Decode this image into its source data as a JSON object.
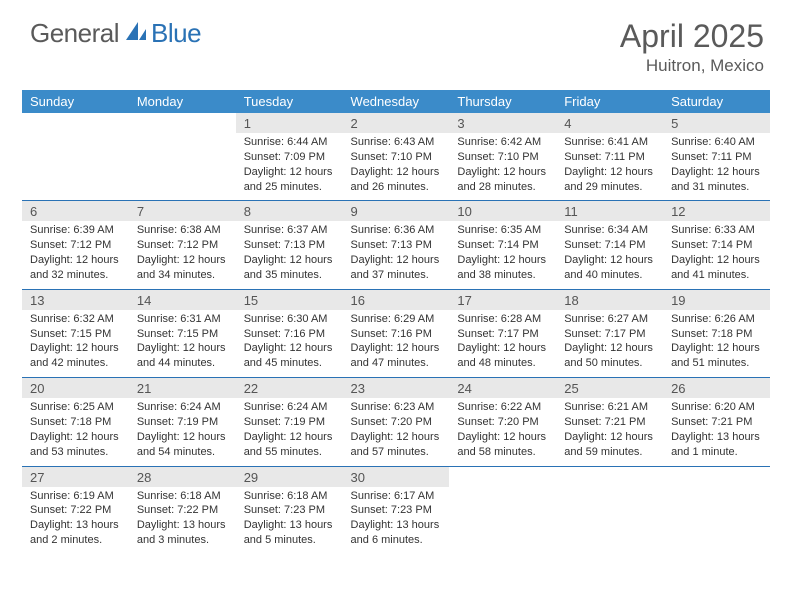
{
  "brand": {
    "part1": "General",
    "part2": "Blue"
  },
  "title": "April 2025",
  "location": "Huitron, Mexico",
  "colors": {
    "header_bg": "#3b8bc9",
    "accent": "#2a72b5",
    "daynum_bg": "#e8e8e8",
    "text": "#333333",
    "muted": "#5a5a5a"
  },
  "weekdays": [
    "Sunday",
    "Monday",
    "Tuesday",
    "Wednesday",
    "Thursday",
    "Friday",
    "Saturday"
  ],
  "weeks": [
    [
      null,
      null,
      {
        "n": "1",
        "sr": "Sunrise: 6:44 AM",
        "ss": "Sunset: 7:09 PM",
        "dl": "Daylight: 12 hours and 25 minutes."
      },
      {
        "n": "2",
        "sr": "Sunrise: 6:43 AM",
        "ss": "Sunset: 7:10 PM",
        "dl": "Daylight: 12 hours and 26 minutes."
      },
      {
        "n": "3",
        "sr": "Sunrise: 6:42 AM",
        "ss": "Sunset: 7:10 PM",
        "dl": "Daylight: 12 hours and 28 minutes."
      },
      {
        "n": "4",
        "sr": "Sunrise: 6:41 AM",
        "ss": "Sunset: 7:11 PM",
        "dl": "Daylight: 12 hours and 29 minutes."
      },
      {
        "n": "5",
        "sr": "Sunrise: 6:40 AM",
        "ss": "Sunset: 7:11 PM",
        "dl": "Daylight: 12 hours and 31 minutes."
      }
    ],
    [
      {
        "n": "6",
        "sr": "Sunrise: 6:39 AM",
        "ss": "Sunset: 7:12 PM",
        "dl": "Daylight: 12 hours and 32 minutes."
      },
      {
        "n": "7",
        "sr": "Sunrise: 6:38 AM",
        "ss": "Sunset: 7:12 PM",
        "dl": "Daylight: 12 hours and 34 minutes."
      },
      {
        "n": "8",
        "sr": "Sunrise: 6:37 AM",
        "ss": "Sunset: 7:13 PM",
        "dl": "Daylight: 12 hours and 35 minutes."
      },
      {
        "n": "9",
        "sr": "Sunrise: 6:36 AM",
        "ss": "Sunset: 7:13 PM",
        "dl": "Daylight: 12 hours and 37 minutes."
      },
      {
        "n": "10",
        "sr": "Sunrise: 6:35 AM",
        "ss": "Sunset: 7:14 PM",
        "dl": "Daylight: 12 hours and 38 minutes."
      },
      {
        "n": "11",
        "sr": "Sunrise: 6:34 AM",
        "ss": "Sunset: 7:14 PM",
        "dl": "Daylight: 12 hours and 40 minutes."
      },
      {
        "n": "12",
        "sr": "Sunrise: 6:33 AM",
        "ss": "Sunset: 7:14 PM",
        "dl": "Daylight: 12 hours and 41 minutes."
      }
    ],
    [
      {
        "n": "13",
        "sr": "Sunrise: 6:32 AM",
        "ss": "Sunset: 7:15 PM",
        "dl": "Daylight: 12 hours and 42 minutes."
      },
      {
        "n": "14",
        "sr": "Sunrise: 6:31 AM",
        "ss": "Sunset: 7:15 PM",
        "dl": "Daylight: 12 hours and 44 minutes."
      },
      {
        "n": "15",
        "sr": "Sunrise: 6:30 AM",
        "ss": "Sunset: 7:16 PM",
        "dl": "Daylight: 12 hours and 45 minutes."
      },
      {
        "n": "16",
        "sr": "Sunrise: 6:29 AM",
        "ss": "Sunset: 7:16 PM",
        "dl": "Daylight: 12 hours and 47 minutes."
      },
      {
        "n": "17",
        "sr": "Sunrise: 6:28 AM",
        "ss": "Sunset: 7:17 PM",
        "dl": "Daylight: 12 hours and 48 minutes."
      },
      {
        "n": "18",
        "sr": "Sunrise: 6:27 AM",
        "ss": "Sunset: 7:17 PM",
        "dl": "Daylight: 12 hours and 50 minutes."
      },
      {
        "n": "19",
        "sr": "Sunrise: 6:26 AM",
        "ss": "Sunset: 7:18 PM",
        "dl": "Daylight: 12 hours and 51 minutes."
      }
    ],
    [
      {
        "n": "20",
        "sr": "Sunrise: 6:25 AM",
        "ss": "Sunset: 7:18 PM",
        "dl": "Daylight: 12 hours and 53 minutes."
      },
      {
        "n": "21",
        "sr": "Sunrise: 6:24 AM",
        "ss": "Sunset: 7:19 PM",
        "dl": "Daylight: 12 hours and 54 minutes."
      },
      {
        "n": "22",
        "sr": "Sunrise: 6:24 AM",
        "ss": "Sunset: 7:19 PM",
        "dl": "Daylight: 12 hours and 55 minutes."
      },
      {
        "n": "23",
        "sr": "Sunrise: 6:23 AM",
        "ss": "Sunset: 7:20 PM",
        "dl": "Daylight: 12 hours and 57 minutes."
      },
      {
        "n": "24",
        "sr": "Sunrise: 6:22 AM",
        "ss": "Sunset: 7:20 PM",
        "dl": "Daylight: 12 hours and 58 minutes."
      },
      {
        "n": "25",
        "sr": "Sunrise: 6:21 AM",
        "ss": "Sunset: 7:21 PM",
        "dl": "Daylight: 12 hours and 59 minutes."
      },
      {
        "n": "26",
        "sr": "Sunrise: 6:20 AM",
        "ss": "Sunset: 7:21 PM",
        "dl": "Daylight: 13 hours and 1 minute."
      }
    ],
    [
      {
        "n": "27",
        "sr": "Sunrise: 6:19 AM",
        "ss": "Sunset: 7:22 PM",
        "dl": "Daylight: 13 hours and 2 minutes."
      },
      {
        "n": "28",
        "sr": "Sunrise: 6:18 AM",
        "ss": "Sunset: 7:22 PM",
        "dl": "Daylight: 13 hours and 3 minutes."
      },
      {
        "n": "29",
        "sr": "Sunrise: 6:18 AM",
        "ss": "Sunset: 7:23 PM",
        "dl": "Daylight: 13 hours and 5 minutes."
      },
      {
        "n": "30",
        "sr": "Sunrise: 6:17 AM",
        "ss": "Sunset: 7:23 PM",
        "dl": "Daylight: 13 hours and 6 minutes."
      },
      null,
      null,
      null
    ]
  ]
}
